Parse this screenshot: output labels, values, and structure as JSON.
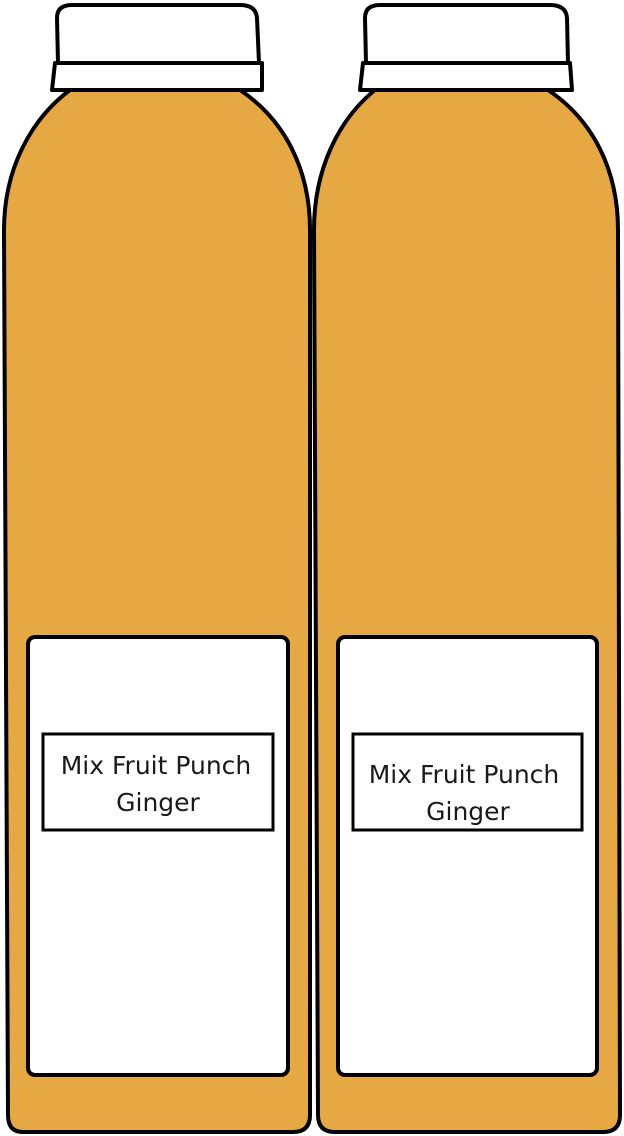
{
  "colors": {
    "juice": "#E5A842",
    "outline": "#000000",
    "cap": "#FFFFFF",
    "label": "#FFFFFF"
  },
  "bottles": [
    {
      "label_line1": "Mix Fruit Punch",
      "label_line2": "Ginger"
    },
    {
      "label_line1": "Mix Fruit Punch",
      "label_line2": "Ginger"
    }
  ]
}
